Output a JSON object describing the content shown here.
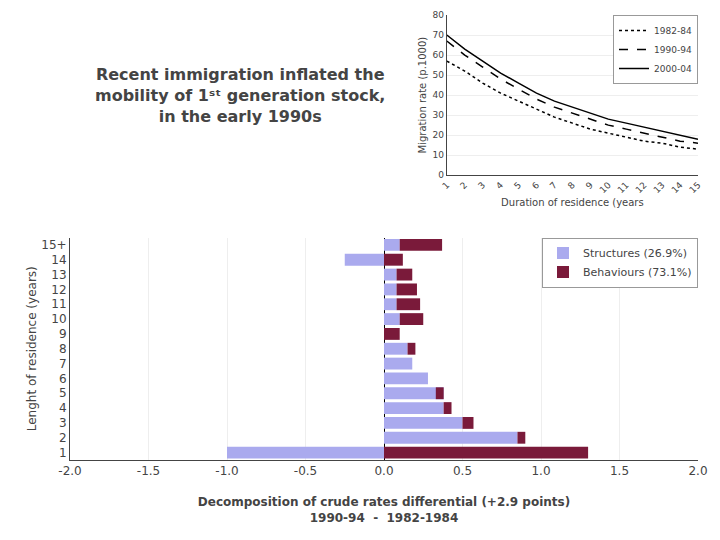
{
  "chart_data": [
    {
      "type": "bar",
      "title": "Recent immigration inflated the\nmobility of 1ˢᵗ generation stock,\nin the early 1990s",
      "orientation": "horizontal",
      "stacked": true,
      "categories": [
        "1",
        "2",
        "3",
        "4",
        "5",
        "6",
        "7",
        "8",
        "9",
        "10",
        "11",
        "12",
        "13",
        "14",
        "15+"
      ],
      "series": [
        {
          "name": "Structures (26.9%)",
          "color": "#aaaaee",
          "values": [
            -1.0,
            0.85,
            0.5,
            0.38,
            0.38,
            0.28,
            0.18,
            0.15,
            0.0,
            0.1,
            0.08,
            0.08,
            0.08,
            -0.25,
            0.1
          ]
        },
        {
          "name": "Behaviours (73.1%)",
          "color": "#7a1a3a",
          "values": [
            1.3,
            0.05,
            0.07,
            0.05,
            -0.05,
            0.0,
            0.0,
            0.05,
            0.1,
            0.15,
            0.15,
            0.13,
            0.1,
            0.12,
            0.27
          ]
        }
      ],
      "xlabel": "Decomposition of crude rates differential (+2.9 points)\n1990-94  -  1982-1984",
      "ylabel": "Lenght of residence (years)",
      "xlim": [
        -2.0,
        2.0
      ],
      "xticks": [
        {
          "value": -2.0,
          "label": "-2.0"
        },
        {
          "value": -1.5,
          "label": "-1.5"
        },
        {
          "value": -1.0,
          "label": "-1.0"
        },
        {
          "value": -0.5,
          "label": "-0.5"
        },
        {
          "value": 0.0,
          "label": "0.0"
        },
        {
          "value": 0.5,
          "label": "0.5"
        },
        {
          "value": 1.0,
          "label": "1.0"
        },
        {
          "value": 1.5,
          "label": "1.5"
        },
        {
          "value": 2.0,
          "label": "2.0"
        }
      ],
      "grid": "x",
      "legend": "upper right"
    },
    {
      "type": "line",
      "x": [
        1,
        2,
        3,
        4,
        5,
        6,
        7,
        8,
        9,
        10,
        11,
        12,
        13,
        14,
        15
      ],
      "series": [
        {
          "name": "1982-84",
          "color": "#000000",
          "line_style": "dotted",
          "values": [
            57,
            52,
            46,
            41,
            37,
            33,
            29,
            26,
            23,
            21,
            19,
            17,
            16,
            14,
            13
          ]
        },
        {
          "name": "1990-94",
          "color": "#000000",
          "line_style": "dashed",
          "values": [
            67,
            60,
            54,
            48,
            43,
            38,
            34,
            31,
            28,
            25,
            23,
            21,
            19,
            17,
            16
          ]
        },
        {
          "name": "2000-04",
          "color": "#000000",
          "line_style": "solid",
          "values": [
            70,
            63,
            57,
            51,
            46,
            41,
            37,
            34,
            31,
            28,
            26,
            24,
            22,
            20,
            18
          ]
        }
      ],
      "xlabel": "Duration of residence (years",
      "ylabel": "Migration rate (p.1000)",
      "xlim": [
        1,
        15
      ],
      "xticks": [
        1,
        2,
        3,
        4,
        5,
        6,
        7,
        8,
        9,
        10,
        11,
        12,
        13,
        14,
        15
      ],
      "ylim": [
        0,
        80
      ],
      "yticks": [
        0,
        10,
        20,
        30,
        40,
        50,
        60,
        70,
        80
      ],
      "grid": "y",
      "legend": "upper right"
    }
  ]
}
